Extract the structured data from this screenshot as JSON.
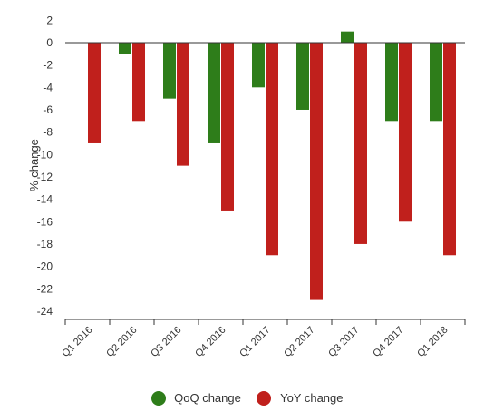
{
  "chart_data": {
    "type": "bar",
    "categories": [
      "Q1 2016",
      "Q2 2016",
      "Q3 2016",
      "Q4 2016",
      "Q1 2017",
      "Q2 2017",
      "Q3 2017",
      "Q4 2017",
      "Q1 2018"
    ],
    "series": [
      {
        "name": "QoQ change",
        "color": "#2e7d1a",
        "values": [
          0,
          -1,
          -5,
          -9,
          -4,
          -6,
          1,
          -7,
          -7
        ]
      },
      {
        "name": "YoY change",
        "color": "#c0201c",
        "values": [
          -9,
          -7,
          -11,
          -15,
          -19,
          -23,
          -18,
          -16,
          -19
        ]
      }
    ],
    "ylabel": "% change",
    "ylim": [
      -25,
      2
    ],
    "yticks": [
      2,
      0,
      -2,
      -4,
      -6,
      -8,
      -10,
      -12,
      -14,
      -16,
      -18,
      -20,
      -22,
      -24
    ],
    "ytick_labels": [
      "2",
      "0",
      "-2",
      "-4",
      "-6",
      "-8",
      "-10",
      "-12",
      "-14",
      "-16",
      "-18",
      "-20",
      "-22",
      "-24"
    ],
    "grid": false,
    "legend_position": "bottom"
  }
}
